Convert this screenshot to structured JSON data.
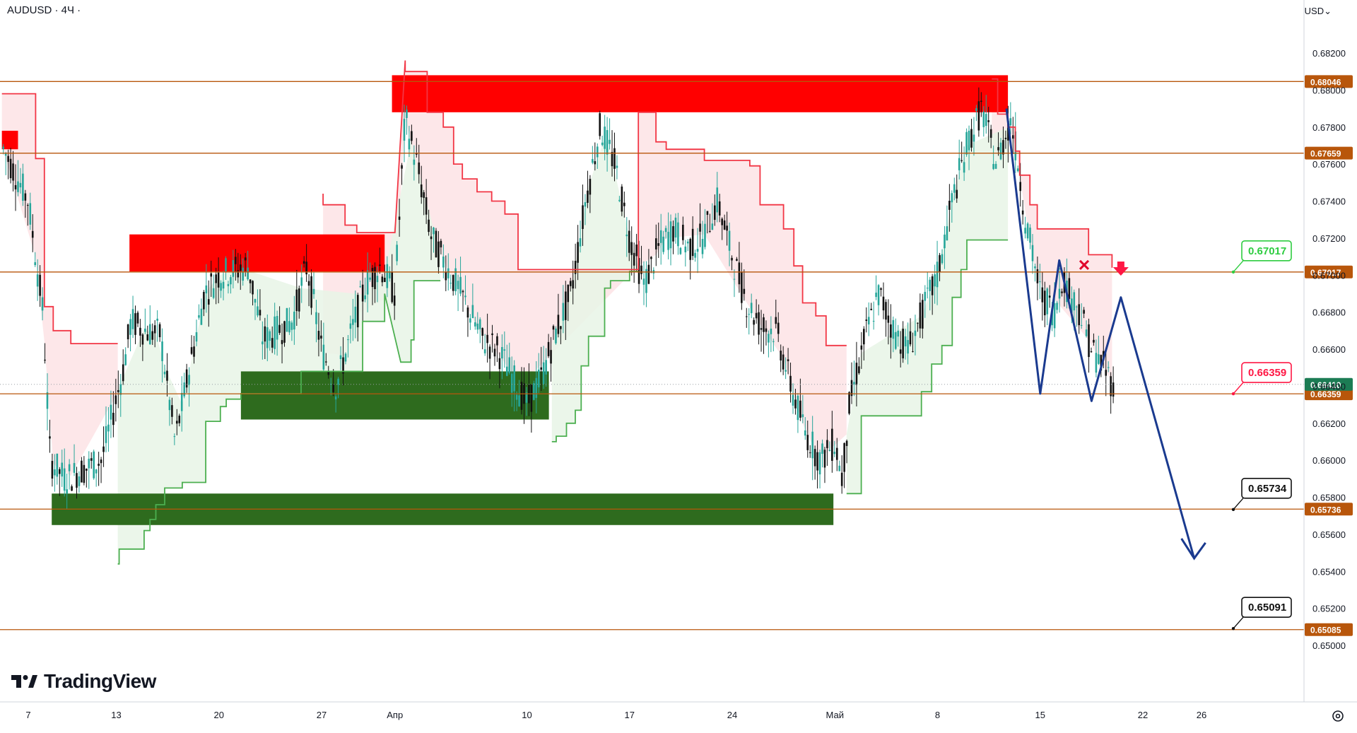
{
  "header": {
    "symbol": "AUDUSD · 4Ч ·",
    "currency": "USD",
    "currency_caret": "⌄"
  },
  "brand": {
    "name": "TradingView"
  },
  "colors": {
    "level_line": "#b8560b",
    "level_tag": "#b8560b",
    "resistance_zone": "#ff0000",
    "support_zone": "#2e6b1e",
    "trail_red": "#f23645",
    "trail_green": "#4caf50",
    "fill_red": "#fde3e5",
    "fill_green": "#e7f5e6",
    "candle_up": "#26a69a",
    "candle_down": "#111111",
    "forecast": "#1a3a8f",
    "callout_green": "#2ecc40",
    "callout_red": "#ff1744",
    "callout_black": "#111111"
  },
  "chart_data": {
    "type": "candlestick",
    "title": "AUDUSD · 4Ч ·",
    "ylim": [
      0.649,
      0.6835
    ],
    "y_ticks": [
      "0.68200",
      "0.68000",
      "0.67800",
      "0.67600",
      "0.67400",
      "0.67200",
      "0.67000",
      "0.66800",
      "0.66600",
      "0.66400",
      "0.66200",
      "0.66000",
      "0.65800",
      "0.65600",
      "0.65400",
      "0.65200",
      "0.65000"
    ],
    "x_ticks": [
      {
        "label": "7",
        "day": 7
      },
      {
        "label": "13",
        "day": 13
      },
      {
        "label": "20",
        "day": 20
      },
      {
        "label": "27",
        "day": 27
      },
      {
        "label": "Апр",
        "day": 32
      },
      {
        "label": "10",
        "day": 41
      },
      {
        "label": "17",
        "day": 48
      },
      {
        "label": "24",
        "day": 55
      },
      {
        "label": "Май",
        "day": 62
      },
      {
        "label": "8",
        "day": 69
      },
      {
        "label": "15",
        "day": 76
      },
      {
        "label": "22",
        "day": 83
      },
      {
        "label": "26",
        "day": 87
      }
    ],
    "x_domain_days": [
      5.2,
      93.0
    ],
    "levels": [
      {
        "value": 0.68046,
        "label": "0.68046"
      },
      {
        "value": 0.67659,
        "label": "0.67659"
      },
      {
        "value": 0.67017,
        "label": "0.67017"
      },
      {
        "value": 0.66359,
        "label": "0.66359"
      },
      {
        "value": 0.65736,
        "label": "0.65736"
      },
      {
        "value": 0.65085,
        "label": "0.65085"
      }
    ],
    "current_price": {
      "value": 0.6641,
      "label": "0.66410"
    },
    "callouts": [
      {
        "value": 0.67017,
        "label": "0.67017",
        "style": "green"
      },
      {
        "value": 0.66359,
        "label": "0.66359",
        "style": "red"
      },
      {
        "value": 0.65734,
        "label": "0.65734",
        "style": "black"
      },
      {
        "value": 0.65091,
        "label": "0.65091",
        "style": "black"
      }
    ],
    "zones": [
      {
        "kind": "resistance",
        "day_from": 5.2,
        "day_to": 6.3,
        "top": 0.6778,
        "bottom": 0.6768
      },
      {
        "kind": "resistance",
        "day_from": 13.9,
        "day_to": 31.3,
        "top": 0.6722,
        "bottom": 0.6702
      },
      {
        "kind": "resistance",
        "day_from": 31.8,
        "day_to": 73.8,
        "top": 0.6808,
        "bottom": 0.6788
      },
      {
        "kind": "support",
        "day_from": 21.5,
        "day_to": 42.5,
        "top": 0.6648,
        "bottom": 0.6622
      },
      {
        "kind": "support",
        "day_from": 8.6,
        "day_to": 61.9,
        "top": 0.6582,
        "bottom": 0.6565
      }
    ],
    "forecast_path": [
      {
        "day": 73.7,
        "value": 0.679
      },
      {
        "day": 76.0,
        "value": 0.6636
      },
      {
        "day": 77.3,
        "value": 0.6708
      },
      {
        "day": 79.5,
        "value": 0.6632
      },
      {
        "day": 81.5,
        "value": 0.6688
      },
      {
        "day": 86.5,
        "value": 0.6547
      }
    ],
    "trail_red": [
      [
        5.2,
        0.6798
      ],
      [
        7.5,
        0.6798
      ],
      [
        7.5,
        0.6763
      ],
      [
        8.1,
        0.6763
      ],
      [
        8.1,
        0.6683
      ],
      [
        8.7,
        0.6683
      ],
      [
        8.7,
        0.667
      ],
      [
        9.9,
        0.667
      ],
      [
        9.9,
        0.6663
      ],
      [
        13.1,
        0.6663
      ],
      [
        27.1,
        0.6744
      ],
      [
        27.1,
        0.6738
      ],
      [
        28.6,
        0.6738
      ],
      [
        28.6,
        0.6727
      ],
      [
        29.4,
        0.6727
      ],
      [
        29.4,
        0.6723
      ],
      [
        32.0,
        0.6723
      ],
      [
        32.7,
        0.6816
      ],
      [
        32.7,
        0.681
      ],
      [
        34.2,
        0.681
      ],
      [
        34.2,
        0.6788
      ],
      [
        35.3,
        0.6788
      ],
      [
        35.3,
        0.678
      ],
      [
        36.0,
        0.678
      ],
      [
        36.0,
        0.676
      ],
      [
        36.6,
        0.676
      ],
      [
        36.6,
        0.6752
      ],
      [
        37.6,
        0.6752
      ],
      [
        37.6,
        0.6745
      ],
      [
        38.6,
        0.6745
      ],
      [
        38.6,
        0.674
      ],
      [
        39.5,
        0.674
      ],
      [
        39.5,
        0.6733
      ],
      [
        40.4,
        0.6733
      ],
      [
        40.4,
        0.6703
      ],
      [
        48.6,
        0.6703
      ],
      [
        48.6,
        0.6788
      ],
      [
        49.8,
        0.6788
      ],
      [
        49.8,
        0.6772
      ],
      [
        50.5,
        0.6772
      ],
      [
        50.5,
        0.6768
      ],
      [
        53.1,
        0.6768
      ],
      [
        53.1,
        0.6762
      ],
      [
        56.2,
        0.6762
      ],
      [
        56.2,
        0.6759
      ],
      [
        56.9,
        0.6759
      ],
      [
        56.9,
        0.6738
      ],
      [
        58.5,
        0.6738
      ],
      [
        58.5,
        0.6725
      ],
      [
        59.2,
        0.6725
      ],
      [
        59.2,
        0.6705
      ],
      [
        59.8,
        0.6705
      ],
      [
        59.8,
        0.6685
      ],
      [
        60.7,
        0.6685
      ],
      [
        60.7,
        0.6678
      ],
      [
        61.4,
        0.6678
      ],
      [
        61.4,
        0.6662
      ],
      [
        62.8,
        0.6662
      ],
      [
        72.7,
        0.6806
      ],
      [
        73.1,
        0.6806
      ],
      [
        73.1,
        0.6787
      ],
      [
        73.8,
        0.6787
      ],
      [
        73.8,
        0.678
      ],
      [
        74.3,
        0.678
      ],
      [
        74.3,
        0.6767
      ],
      [
        74.6,
        0.6767
      ],
      [
        74.6,
        0.6754
      ],
      [
        75.3,
        0.6754
      ],
      [
        75.3,
        0.6738
      ],
      [
        75.8,
        0.6738
      ],
      [
        75.8,
        0.6725
      ],
      [
        79.3,
        0.6725
      ],
      [
        79.3,
        0.6711
      ],
      [
        80.9,
        0.6711
      ],
      [
        80.9,
        0.6704
      ]
    ],
    "trail_green": [
      [
        13.1,
        0.6544
      ],
      [
        13.2,
        0.6544
      ],
      [
        13.2,
        0.6552
      ],
      [
        14.9,
        0.6552
      ],
      [
        14.9,
        0.6562
      ],
      [
        15.3,
        0.6562
      ],
      [
        15.3,
        0.6568
      ],
      [
        15.7,
        0.6568
      ],
      [
        15.7,
        0.6576
      ],
      [
        16.3,
        0.6576
      ],
      [
        16.3,
        0.6585
      ],
      [
        17.5,
        0.6585
      ],
      [
        17.5,
        0.6588
      ],
      [
        19.1,
        0.6588
      ],
      [
        19.1,
        0.6621
      ],
      [
        20.1,
        0.6621
      ],
      [
        20.1,
        0.6629
      ],
      [
        20.5,
        0.6629
      ],
      [
        20.5,
        0.6633
      ],
      [
        21.5,
        0.6633
      ],
      [
        21.5,
        0.6636
      ],
      [
        25.6,
        0.6636
      ],
      [
        25.6,
        0.6648
      ],
      [
        29.8,
        0.6648
      ],
      [
        29.8,
        0.6675
      ],
      [
        31.3,
        0.6675
      ],
      [
        31.3,
        0.669
      ],
      [
        32.4,
        0.6653
      ],
      [
        33.1,
        0.6653
      ],
      [
        33.1,
        0.6665
      ],
      [
        33.3,
        0.6665
      ],
      [
        33.3,
        0.6697
      ],
      [
        35.1,
        0.6697
      ],
      [
        42.7,
        0.661
      ],
      [
        43.0,
        0.661
      ],
      [
        43.0,
        0.6613
      ],
      [
        43.7,
        0.6613
      ],
      [
        43.7,
        0.662
      ],
      [
        44.3,
        0.662
      ],
      [
        44.3,
        0.6627
      ],
      [
        44.7,
        0.6627
      ],
      [
        44.7,
        0.6651
      ],
      [
        45.2,
        0.6651
      ],
      [
        45.2,
        0.6667
      ],
      [
        46.3,
        0.6667
      ],
      [
        46.3,
        0.6693
      ],
      [
        46.7,
        0.6693
      ],
      [
        46.7,
        0.6697
      ],
      [
        48.0,
        0.6697
      ],
      [
        48.0,
        0.6702
      ],
      [
        48.6,
        0.6702
      ],
      [
        62.8,
        0.6582
      ],
      [
        63.8,
        0.6582
      ],
      [
        63.8,
        0.6624
      ],
      [
        67.9,
        0.6624
      ],
      [
        67.9,
        0.6637
      ],
      [
        68.6,
        0.6637
      ],
      [
        68.6,
        0.6652
      ],
      [
        69.3,
        0.6652
      ],
      [
        69.3,
        0.6662
      ],
      [
        70.0,
        0.6662
      ],
      [
        70.0,
        0.6688
      ],
      [
        70.6,
        0.6688
      ],
      [
        70.6,
        0.6703
      ],
      [
        71.0,
        0.6703
      ],
      [
        71.0,
        0.6719
      ],
      [
        73.8,
        0.6719
      ]
    ]
  }
}
